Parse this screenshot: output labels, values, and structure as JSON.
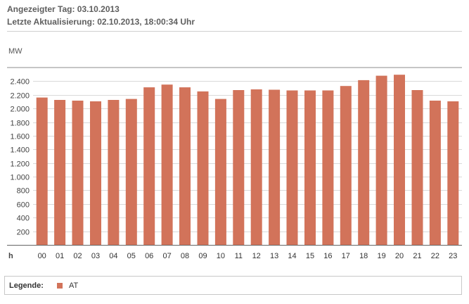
{
  "header": {
    "shown_day": "Angezeigter Tag: 03.10.2013",
    "last_update": "Letzte Aktualisierung: 02.10.2013, 18:00:34 Uhr"
  },
  "legend": {
    "title": "Legende:",
    "items": [
      {
        "label": "AT",
        "color": "#d2735a"
      }
    ]
  },
  "chart_data": {
    "type": "bar",
    "ylabel": "MW",
    "xlabel": "h",
    "ylim": [
      0,
      2600
    ],
    "yticks": [
      200,
      400,
      600,
      800,
      1000,
      1200,
      1400,
      1600,
      1800,
      2000,
      2200,
      2400
    ],
    "ytick_labels": [
      "200",
      "400",
      "600",
      "800",
      "1.000",
      "1.200",
      "1.400",
      "1.600",
      "1.800",
      "2.000",
      "2.200",
      "2.400"
    ],
    "grid": "horizontal",
    "categories": [
      "00",
      "01",
      "02",
      "03",
      "04",
      "05",
      "06",
      "07",
      "08",
      "09",
      "10",
      "11",
      "12",
      "13",
      "14",
      "15",
      "16",
      "17",
      "18",
      "19",
      "20",
      "21",
      "22",
      "23"
    ],
    "series": [
      {
        "name": "AT",
        "color": "#d2735a",
        "values": [
          2160,
          2125,
          2115,
          2105,
          2125,
          2140,
          2310,
          2350,
          2310,
          2250,
          2140,
          2270,
          2280,
          2275,
          2265,
          2265,
          2265,
          2330,
          2415,
          2480,
          2495,
          2270,
          2115,
          2105
        ]
      }
    ]
  }
}
